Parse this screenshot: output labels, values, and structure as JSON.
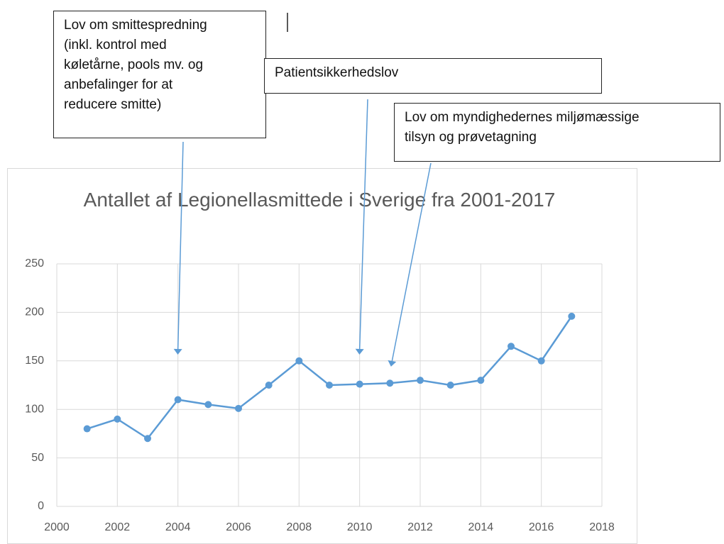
{
  "chart_data": {
    "type": "line",
    "title": "Antallet af Legionellasmittede i Sverige fra 2001-2017",
    "x": [
      2001,
      2002,
      2003,
      2004,
      2005,
      2006,
      2007,
      2008,
      2009,
      2010,
      2011,
      2012,
      2013,
      2014,
      2015,
      2016,
      2017
    ],
    "series": [
      {
        "name": "Legionellasmittede",
        "color": "#5b9bd5",
        "values": [
          80,
          90,
          70,
          110,
          105,
          101,
          125,
          150,
          125,
          126,
          127,
          130,
          125,
          130,
          165,
          150,
          196
        ]
      }
    ],
    "xlim": [
      2000,
      2018
    ],
    "xticks": [
      2000,
      2002,
      2004,
      2006,
      2008,
      2010,
      2012,
      2014,
      2016,
      2018
    ],
    "ylim": [
      0,
      250
    ],
    "yticks": [
      0,
      50,
      100,
      150,
      200,
      250
    ],
    "grid": true,
    "annotations": [
      {
        "lines": [
          "Lov om smittespredning",
          "(inkl. kontrol med",
          "køletårne, pools mv.  og",
          "anbefalinger for at",
          "reducere smitte)"
        ],
        "x": 2004
      },
      {
        "lines": [
          "Patientsikkerhedslov"
        ],
        "x": 2010
      },
      {
        "lines": [
          "Lov om myndighedernes miljømæssige",
          "tilsyn og prøvetagning"
        ],
        "x": 2011
      }
    ]
  }
}
